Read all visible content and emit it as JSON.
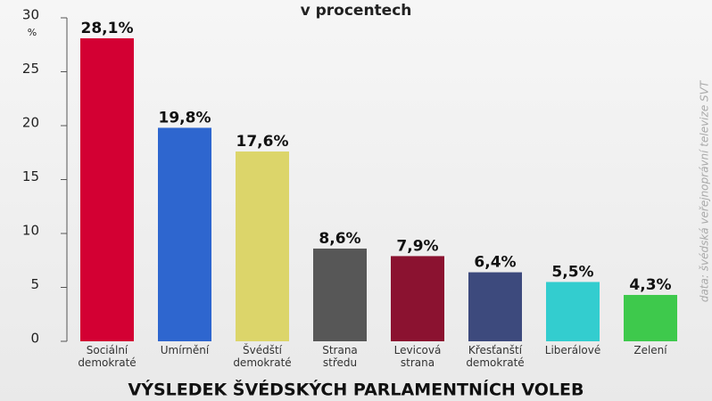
{
  "chart_data": {
    "type": "bar",
    "title": "VÝSLEDEK ŠVÉDSKÝCH PARLAMENTNÍCH VOLEB",
    "subtitle": "v procentech",
    "y_unit": "%",
    "source": "data: švédská veřejnoprávní televize SVT",
    "categories": [
      "Sociální\ndemokraté",
      "Umírnění",
      "Švédští\ndemokraté",
      "Strana\nstředu",
      "Levicová\nstrana",
      "Křesťanští\ndemokraté",
      "Liberálové",
      "Zelení"
    ],
    "values": [
      28.1,
      19.8,
      17.6,
      8.6,
      7.9,
      6.4,
      5.5,
      4.3
    ],
    "value_labels": [
      "28,1%",
      "19,8%",
      "17,6%",
      "8,6%",
      "7,9%",
      "6,4%",
      "5,5%",
      "4,3%"
    ],
    "colors": [
      "#d30033",
      "#2e66cf",
      "#dcd56a",
      "#575757",
      "#8b1230",
      "#3d4a7d",
      "#33cdcf",
      "#3ec94c"
    ],
    "ylim": [
      0,
      30
    ],
    "yticks": [
      0,
      5,
      10,
      15,
      20,
      25,
      30
    ]
  }
}
